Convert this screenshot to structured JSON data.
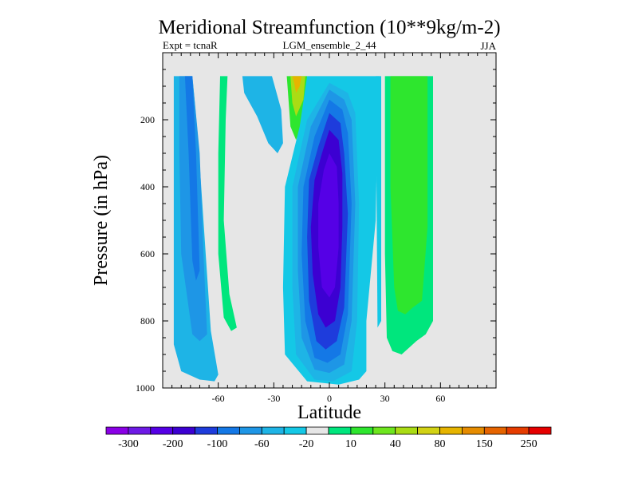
{
  "chart_data": {
    "type": "heatmap",
    "title": "Meridional Streamfunction (10**9kg/m-2)",
    "subtitle_left": "Expt = tcnaR",
    "subtitle_center": "LGM_ensemble_2_44",
    "subtitle_right": "JJA",
    "xlabel": "Latitude",
    "ylabel": "Pressure (in hPa)",
    "xlim": [
      -90,
      90
    ],
    "ylim": [
      1000,
      0
    ],
    "xticks": [
      -60,
      -30,
      0,
      30,
      60
    ],
    "xtick_labels": [
      "-60",
      "-30",
      "0",
      "30",
      "60"
    ],
    "yticks": [
      200,
      400,
      600,
      800,
      1000
    ],
    "ytick_labels": [
      "200",
      "400",
      "600",
      "800",
      "1000"
    ],
    "background_color": "#e6e6e6",
    "colorbar": {
      "labels": [
        "-300",
        "-200",
        "-100",
        "-60",
        "-20",
        "10",
        "40",
        "80",
        "150",
        "250"
      ],
      "colors": [
        "#8a00e6",
        "#6e1ae6",
        "#5500e6",
        "#3c00d2",
        "#1e3cdc",
        "#1478e6",
        "#1e96e6",
        "#1eb4e6",
        "#14c8e6",
        "#e6e6e6",
        "#00e67d",
        "#2ee62e",
        "#6ee61e",
        "#aadc14",
        "#d2d214",
        "#e6b400",
        "#e68c00",
        "#e66400",
        "#e63c00",
        "#e60000"
      ]
    },
    "regions": [
      {
        "name": "sh-outer-cell-light",
        "color": "#1eb4e6",
        "points": [
          [
            -84,
            70
          ],
          [
            -74,
            70
          ],
          [
            -71,
            250
          ],
          [
            -68,
            500
          ],
          [
            -64,
            830
          ],
          [
            -60,
            960
          ],
          [
            -62,
            980
          ],
          [
            -70,
            975
          ],
          [
            -80,
            950
          ],
          [
            -84,
            870
          ]
        ]
      },
      {
        "name": "sh-outer-cell-mid",
        "color": "#1e96e6",
        "points": [
          [
            -81,
            70
          ],
          [
            -74,
            70
          ],
          [
            -70,
            300
          ],
          [
            -68,
            600
          ],
          [
            -66,
            840
          ],
          [
            -70,
            860
          ],
          [
            -74,
            840
          ],
          [
            -80,
            600
          ],
          [
            -81,
            300
          ]
        ]
      },
      {
        "name": "sh-outer-cell-core",
        "color": "#1478e6",
        "points": [
          [
            -78,
            70
          ],
          [
            -74,
            70
          ],
          [
            -72,
            300
          ],
          [
            -70,
            650
          ],
          [
            -72,
            680
          ],
          [
            -74,
            620
          ],
          [
            -76,
            300
          ]
        ]
      },
      {
        "name": "sh-thin-green-cell",
        "color": "#00e67d",
        "points": [
          [
            -59,
            70
          ],
          [
            -55,
            70
          ],
          [
            -56,
            200
          ],
          [
            -57,
            500
          ],
          [
            -54,
            720
          ],
          [
            -50,
            820
          ],
          [
            -53,
            830
          ],
          [
            -57,
            790
          ],
          [
            -60,
            600
          ],
          [
            -60,
            300
          ]
        ]
      },
      {
        "name": "sh-upper-cyan-cell",
        "color": "#1eb4e6",
        "points": [
          [
            -47,
            70
          ],
          [
            -31,
            70
          ],
          [
            -26,
            170
          ],
          [
            -25,
            270
          ],
          [
            -28,
            300
          ],
          [
            -33,
            270
          ],
          [
            -39,
            190
          ],
          [
            -46,
            120
          ]
        ]
      },
      {
        "name": "yellow-band-green",
        "color": "#2ee62e",
        "points": [
          [
            -23,
            70
          ],
          [
            -12,
            70
          ],
          [
            -12,
            180
          ],
          [
            -18,
            260
          ],
          [
            -21,
            220
          ]
        ]
      },
      {
        "name": "yellow-band-lime",
        "color": "#aadc14",
        "points": [
          [
            -21,
            70
          ],
          [
            -13,
            70
          ],
          [
            -14,
            140
          ],
          [
            -18,
            190
          ],
          [
            -20,
            150
          ]
        ]
      },
      {
        "name": "yellow-band-orange",
        "color": "#e6b400",
        "points": [
          [
            -20,
            70
          ],
          [
            -15,
            70
          ],
          [
            -16,
            100
          ],
          [
            -18,
            120
          ],
          [
            -19,
            90
          ]
        ]
      },
      {
        "name": "hadley-cell-edge",
        "color": "#14c8e6",
        "points": [
          [
            -12,
            70
          ],
          [
            27,
            70
          ],
          [
            26,
            200
          ],
          [
            25,
            500
          ],
          [
            20,
            800
          ],
          [
            20,
            950
          ],
          [
            16,
            975
          ],
          [
            5,
            990
          ],
          [
            -12,
            980
          ],
          [
            -24,
            900
          ],
          [
            -25,
            700
          ],
          [
            -24,
            400
          ],
          [
            -16,
            220
          ]
        ]
      },
      {
        "name": "hadley-cell-1",
        "color": "#1eb4e6",
        "points": [
          [
            0,
            90
          ],
          [
            10,
            120
          ],
          [
            14,
            180
          ],
          [
            16,
            450
          ],
          [
            15,
            800
          ],
          [
            12,
            950
          ],
          [
            2,
            980
          ],
          [
            -8,
            975
          ],
          [
            -18,
            900
          ],
          [
            -20,
            700
          ],
          [
            -20,
            400
          ],
          [
            -12,
            200
          ]
        ]
      },
      {
        "name": "hadley-cell-2",
        "color": "#1e96e6",
        "points": [
          [
            0,
            110
          ],
          [
            8,
            140
          ],
          [
            12,
            200
          ],
          [
            14,
            450
          ],
          [
            12,
            800
          ],
          [
            8,
            930
          ],
          [
            0,
            955
          ],
          [
            -8,
            945
          ],
          [
            -15,
            850
          ],
          [
            -17,
            650
          ],
          [
            -17,
            400
          ],
          [
            -10,
            220
          ]
        ]
      },
      {
        "name": "hadley-cell-3",
        "color": "#1478e6",
        "points": [
          [
            0,
            140
          ],
          [
            7,
            170
          ],
          [
            10,
            240
          ],
          [
            12,
            450
          ],
          [
            10,
            780
          ],
          [
            6,
            900
          ],
          [
            -1,
            925
          ],
          [
            -8,
            910
          ],
          [
            -13,
            800
          ],
          [
            -15,
            600
          ],
          [
            -14,
            400
          ],
          [
            -8,
            250
          ]
        ]
      },
      {
        "name": "hadley-cell-4",
        "color": "#1e3cdc",
        "points": [
          [
            0,
            180
          ],
          [
            6,
            210
          ],
          [
            8,
            300
          ],
          [
            10,
            480
          ],
          [
            8,
            760
          ],
          [
            4,
            860
          ],
          [
            -2,
            885
          ],
          [
            -7,
            860
          ],
          [
            -11,
            740
          ],
          [
            -12,
            550
          ],
          [
            -11,
            380
          ],
          [
            -6,
            280
          ]
        ]
      },
      {
        "name": "hadley-cell-5",
        "color": "#3c00d2",
        "points": [
          [
            0,
            230
          ],
          [
            5,
            260
          ],
          [
            7,
            360
          ],
          [
            7,
            520
          ],
          [
            6,
            700
          ],
          [
            3,
            800
          ],
          [
            -2,
            820
          ],
          [
            -6,
            780
          ],
          [
            -9,
            660
          ],
          [
            -10,
            520
          ],
          [
            -8,
            380
          ],
          [
            -4,
            300
          ]
        ]
      },
      {
        "name": "hadley-cell-core",
        "color": "#5500e6",
        "points": [
          [
            0,
            300
          ],
          [
            4,
            340
          ],
          [
            5,
            450
          ],
          [
            5,
            580
          ],
          [
            3,
            700
          ],
          [
            0,
            730
          ],
          [
            -4,
            700
          ],
          [
            -6,
            580
          ],
          [
            -6,
            450
          ],
          [
            -3,
            350
          ]
        ]
      },
      {
        "name": "nh-cyan-sliver",
        "color": "#14c8e6",
        "points": [
          [
            25,
            70
          ],
          [
            28,
            70
          ],
          [
            28,
            800
          ],
          [
            26,
            820
          ]
        ]
      },
      {
        "name": "nh-green-outer",
        "color": "#00e67d",
        "points": [
          [
            30,
            70
          ],
          [
            56,
            70
          ],
          [
            56,
            800
          ],
          [
            52,
            840
          ],
          [
            47,
            860
          ],
          [
            43,
            880
          ],
          [
            39,
            900
          ],
          [
            34,
            890
          ],
          [
            31,
            850
          ],
          [
            30,
            600
          ]
        ]
      },
      {
        "name": "nh-green-inner",
        "color": "#2ee62e",
        "points": [
          [
            33,
            70
          ],
          [
            53,
            70
          ],
          [
            53,
            520
          ],
          [
            50,
            740
          ],
          [
            45,
            760
          ],
          [
            41,
            780
          ],
          [
            37,
            770
          ],
          [
            35,
            700
          ],
          [
            33,
            400
          ]
        ]
      }
    ]
  }
}
